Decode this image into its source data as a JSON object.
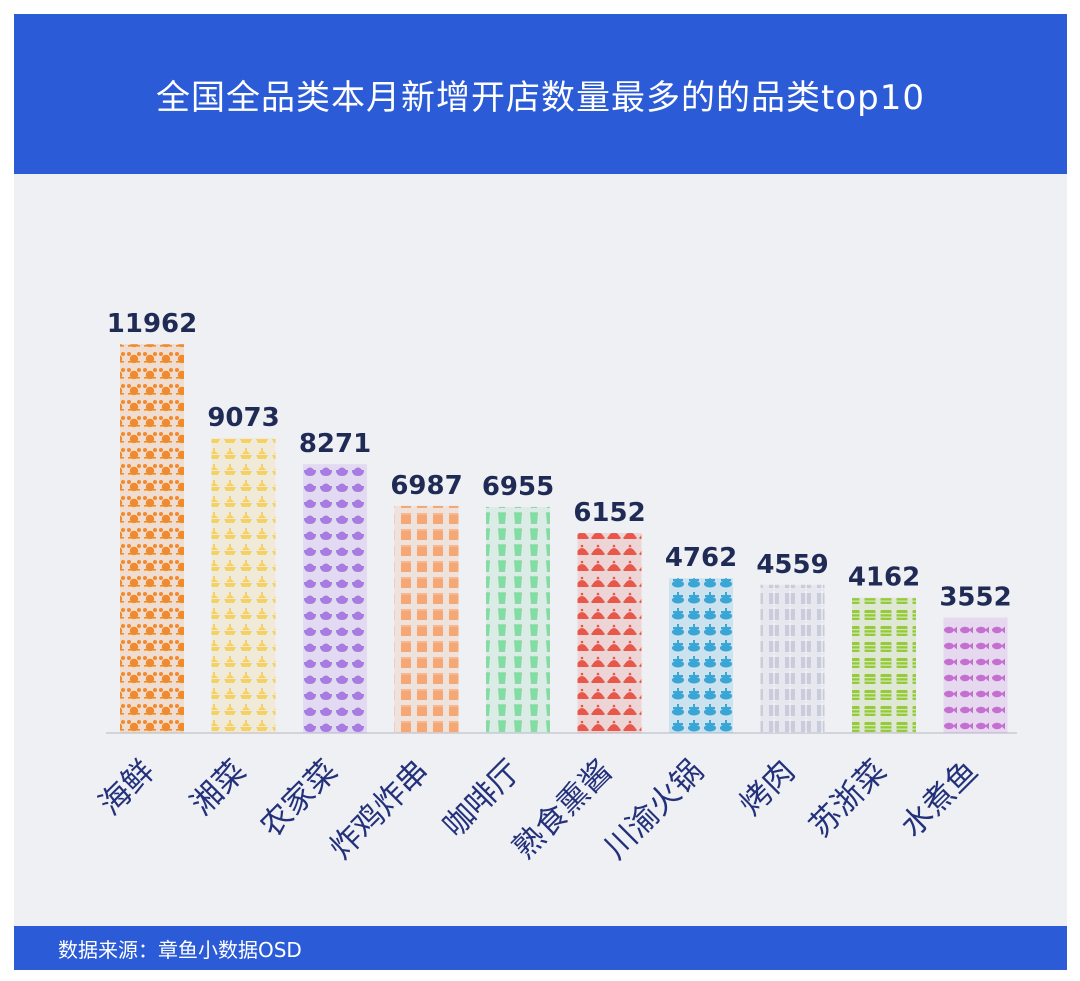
{
  "header": {
    "title": "全国全品类本月新增开店数量最多的的品类top10"
  },
  "footer": {
    "source": "数据来源：章鱼小数据OSD"
  },
  "chart_data": {
    "type": "bar",
    "title": "全国全品类本月新增开店数量最多的的品类top10",
    "categories": [
      "海鲜",
      "湘菜",
      "农家菜",
      "炸鸡炸串",
      "咖啡厅",
      "熟食熏酱",
      "川渝火锅",
      "烤肉",
      "苏浙菜",
      "水煮鱼"
    ],
    "values": [
      11962,
      9073,
      8271,
      6987,
      6955,
      6152,
      4762,
      4559,
      4162,
      3552
    ],
    "ylim": [
      0,
      12000
    ],
    "grid": false,
    "legend": "none",
    "colors": [
      "#f08a2c",
      "#f6d160",
      "#a77be0",
      "#f5a874",
      "#85dba4",
      "#e8574a",
      "#3aa6d6",
      "#c5c7d6",
      "#95c940",
      "#c46fd1"
    ],
    "icons": [
      "crab-icon",
      "chili-dish-icon",
      "rice-bowl-icon",
      "fried-chicken-box-icon",
      "coffee-cup-icon",
      "cloche-icon",
      "hotpot-icon",
      "grill-skewer-icon",
      "steamer-icon",
      "fish-icon"
    ]
  }
}
